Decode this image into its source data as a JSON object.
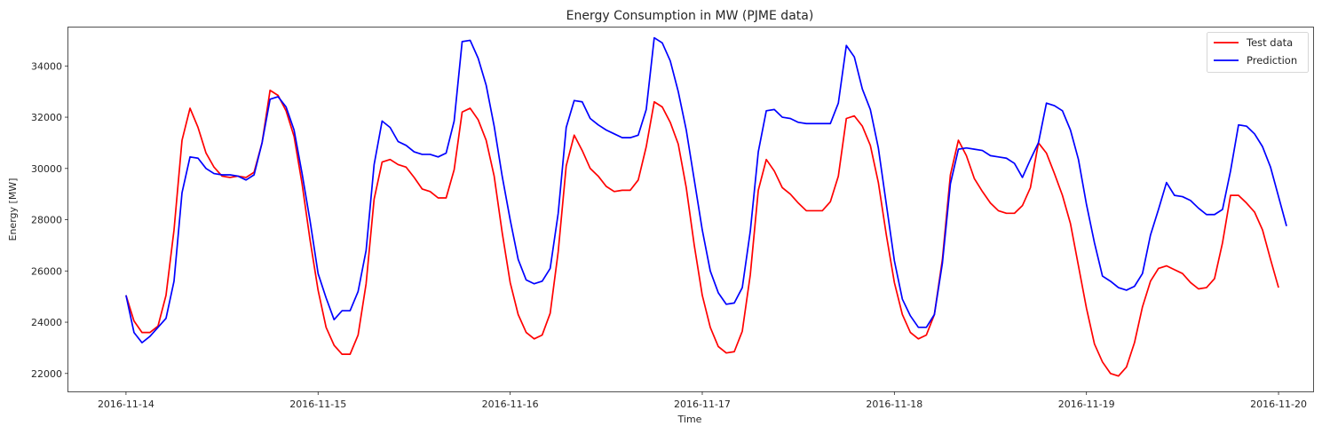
{
  "chart_data": {
    "type": "line",
    "title": "Energy Consumption in MW (PJME data)",
    "xlabel": "Time",
    "ylabel": "Energy [MW]",
    "x_ticks": [
      "2016-11-14",
      "2016-11-15",
      "2016-11-16",
      "2016-11-17",
      "2016-11-18",
      "2016-11-19",
      "2016-11-20"
    ],
    "y_ticks": [
      22000,
      24000,
      26000,
      28000,
      30000,
      32000,
      34000
    ],
    "xlim_days": [
      -0.3,
      6.18
    ],
    "ylim": [
      21300,
      35500
    ],
    "x_start": "2016-11-14 00:00",
    "x_step": "1 hour",
    "grid": false,
    "legend_position": "top-right",
    "series": [
      {
        "name": "Test data",
        "color": "#ff0000",
        "values": [
          25050,
          24050,
          23600,
          23600,
          23850,
          25050,
          27600,
          31100,
          32350,
          31600,
          30600,
          30050,
          29700,
          29650,
          29700,
          29650,
          29850,
          31000,
          33050,
          32850,
          32250,
          31250,
          29400,
          27200,
          25250,
          23800,
          23100,
          22750,
          22750,
          23500,
          25500,
          28800,
          30250,
          30350,
          30150,
          30050,
          29650,
          29200,
          29100,
          28850,
          28850,
          29950,
          32200,
          32350,
          31900,
          31100,
          29700,
          27500,
          25550,
          24300,
          23600,
          23350,
          23500,
          24350,
          26750,
          30100,
          31300,
          30700,
          30000,
          29700,
          29300,
          29100,
          29150,
          29150,
          29550,
          30850,
          32600,
          32400,
          31800,
          30950,
          29250,
          27000,
          25050,
          23800,
          23050,
          22800,
          22850,
          23650,
          25850,
          29150,
          30350,
          29900,
          29250,
          29000,
          28650,
          28350,
          28350,
          28350,
          28700,
          29700,
          31950,
          32050,
          31650,
          30900,
          29450,
          27400,
          25550,
          24300,
          23600,
          23350,
          23500,
          24300,
          26450,
          29750,
          31100,
          30500,
          29600,
          29100,
          28650,
          28350,
          28250,
          28250,
          28550,
          29250,
          31000,
          30600,
          29800,
          28950,
          27850,
          26200,
          24550,
          23150,
          22450,
          22000,
          21900,
          22250,
          23200,
          24600,
          25600,
          26100,
          26200,
          26050,
          25900,
          25550,
          25300,
          25350,
          25700,
          27100,
          28950,
          28950,
          28650,
          28300,
          27600,
          26450,
          25350
        ]
      },
      {
        "name": "Prediction",
        "color": "#0000ff",
        "values": [
          25050,
          23600,
          23200,
          23450,
          23800,
          24150,
          25600,
          29050,
          30450,
          30400,
          30000,
          29800,
          29750,
          29750,
          29700,
          29550,
          29750,
          31000,
          32700,
          32800,
          32400,
          31500,
          29800,
          27950,
          25900,
          24950,
          24100,
          24450,
          24450,
          25200,
          26800,
          30150,
          31850,
          31600,
          31050,
          30900,
          30650,
          30550,
          30550,
          30450,
          30600,
          31850,
          34950,
          35000,
          34300,
          33250,
          31650,
          29700,
          28000,
          26450,
          25650,
          25500,
          25600,
          26100,
          28250,
          31600,
          32650,
          32600,
          31950,
          31700,
          31500,
          31350,
          31200,
          31200,
          31300,
          32300,
          35100,
          34900,
          34200,
          33000,
          31500,
          29550,
          27600,
          26000,
          25150,
          24700,
          24750,
          25350,
          27550,
          30650,
          32250,
          32300,
          32000,
          31950,
          31800,
          31750,
          31750,
          31750,
          31750,
          32550,
          34800,
          34350,
          33100,
          32300,
          30800,
          28600,
          26400,
          24900,
          24250,
          23800,
          23800,
          24300,
          26300,
          29400,
          30750,
          30800,
          30750,
          30700,
          30500,
          30450,
          30400,
          30200,
          29650,
          30350,
          31000,
          32550,
          32450,
          32250,
          31500,
          30350,
          28600,
          27100,
          25800,
          25600,
          25350,
          25250,
          25400,
          25900,
          27400,
          28400,
          29450,
          28950,
          28900,
          28750,
          28450,
          28200,
          28200,
          28400,
          29900,
          31700,
          31650,
          31350,
          30850,
          30050,
          28900,
          27750
        ]
      }
    ]
  }
}
